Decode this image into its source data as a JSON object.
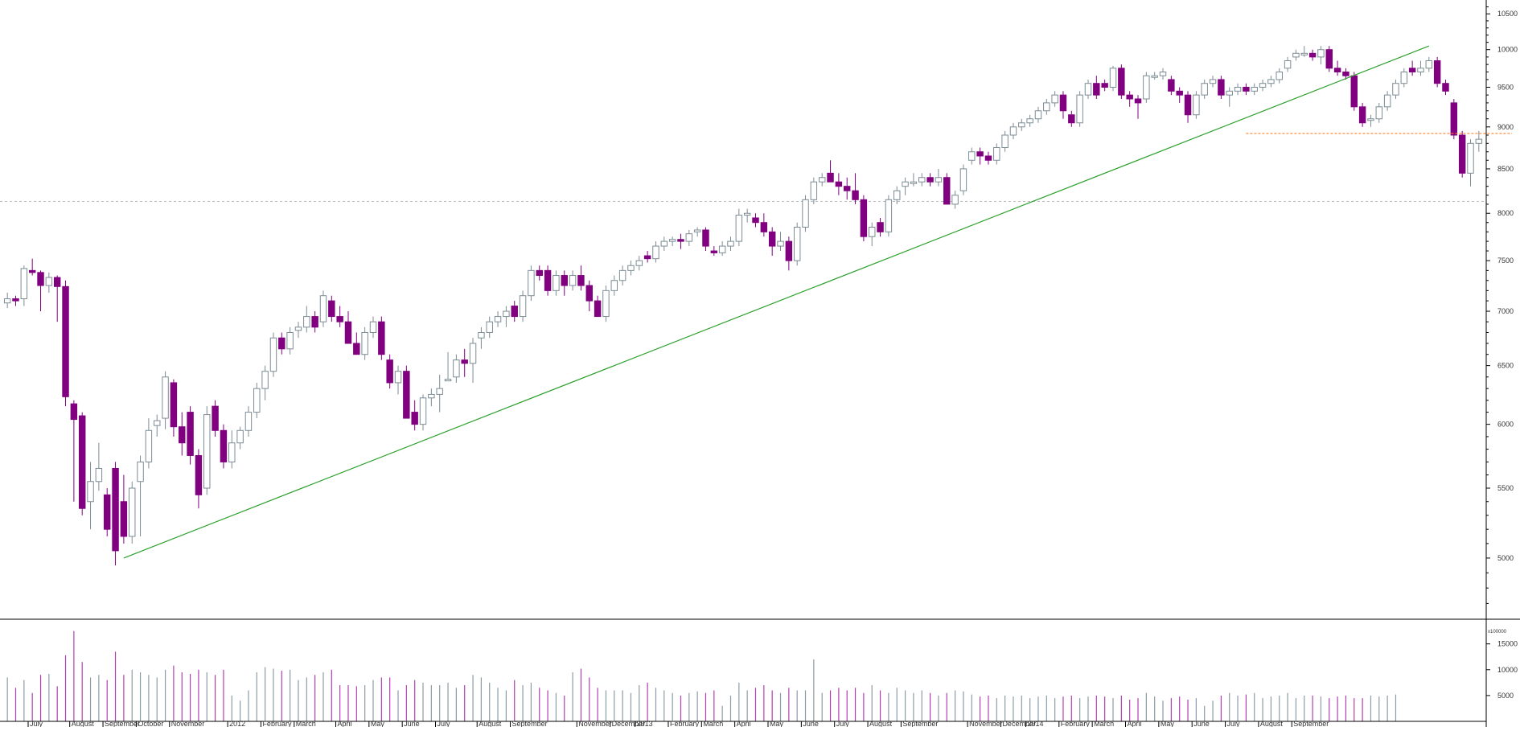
{
  "chart_data": {
    "type": "candlestick",
    "colors": {
      "up": "#ffffff",
      "down": "#800080",
      "up_border": "#7c8c94",
      "trendline": "#2ca02c",
      "support": "#ff7f2a",
      "volume_up": "#8c9ca4",
      "volume_down": "#b040b0",
      "neutral_candle": "#7c8c94"
    },
    "price_axis": {
      "scale": "log",
      "ylim": [
        4600,
        10700
      ],
      "ticks": [
        5000,
        5500,
        6000,
        6500,
        7000,
        7500,
        8000,
        8500,
        9000,
        9500,
        10000,
        10500
      ]
    },
    "volume_axis": {
      "ylim": [
        0,
        19000
      ],
      "ticks": [
        5000,
        10000,
        15000
      ],
      "unit_label": "x100000"
    },
    "x_labels": [
      "July",
      "August",
      "September",
      "October",
      "November",
      "2012",
      "February",
      "March",
      "April",
      "May",
      "June",
      "July",
      "August",
      "September",
      "November",
      "December",
      "2013",
      "February",
      "March",
      "April",
      "May",
      "June",
      "July",
      "August",
      "September",
      "November",
      "December",
      "2014",
      "February",
      "March",
      "April",
      "May",
      "June",
      "July",
      "August",
      "September"
    ],
    "label_weeks": [
      3,
      8,
      12,
      16,
      20,
      27,
      31,
      35,
      40,
      44,
      48,
      52,
      57,
      61,
      69,
      73,
      76,
      80,
      84,
      88,
      92,
      96,
      100,
      104,
      108,
      116,
      120,
      123,
      127,
      131,
      135,
      139,
      143,
      147,
      151,
      155
    ],
    "candles": [
      [
        7080,
        7180,
        7030,
        7120
      ],
      [
        7120,
        7150,
        7050,
        7100
      ],
      [
        7120,
        7450,
        7050,
        7420
      ],
      [
        7400,
        7520,
        7350,
        7380
      ],
      [
        7380,
        7400,
        7000,
        7250
      ],
      [
        7250,
        7380,
        7180,
        7330
      ],
      [
        7330,
        7350,
        6900,
        7240
      ],
      [
        7240,
        7300,
        6150,
        6230
      ],
      [
        6170,
        6200,
        5400,
        6040
      ],
      [
        6070,
        6100,
        5300,
        5350
      ],
      [
        5400,
        5700,
        5200,
        5550
      ],
      [
        5550,
        5850,
        5480,
        5650
      ],
      [
        5450,
        5500,
        5150,
        5200
      ],
      [
        5650,
        5700,
        4950,
        5050
      ],
      [
        5400,
        5600,
        5100,
        5150
      ],
      [
        5150,
        5550,
        5100,
        5500
      ],
      [
        5550,
        5750,
        5150,
        5700
      ],
      [
        5700,
        6050,
        5650,
        5950
      ],
      [
        5990,
        6080,
        5900,
        6030
      ],
      [
        6050,
        6450,
        5960,
        6400
      ],
      [
        6350,
        6380,
        5900,
        5980
      ],
      [
        5980,
        6100,
        5750,
        5850
      ],
      [
        6100,
        6150,
        5680,
        5750
      ],
      [
        5750,
        5800,
        5350,
        5450
      ],
      [
        5500,
        6150,
        5450,
        6080
      ],
      [
        6150,
        6200,
        5900,
        5950
      ],
      [
        5950,
        6000,
        5650,
        5700
      ],
      [
        5700,
        5950,
        5650,
        5850
      ],
      [
        5850,
        5980,
        5800,
        5950
      ],
      [
        5950,
        6150,
        5900,
        6100
      ],
      [
        6100,
        6350,
        6050,
        6300
      ],
      [
        6300,
        6500,
        6200,
        6450
      ],
      [
        6450,
        6800,
        6400,
        6750
      ],
      [
        6750,
        6800,
        6600,
        6650
      ],
      [
        6650,
        6850,
        6600,
        6800
      ],
      [
        6820,
        6900,
        6750,
        6850
      ],
      [
        6850,
        7050,
        6800,
        6950
      ],
      [
        6950,
        7000,
        6800,
        6850
      ],
      [
        6900,
        7200,
        6850,
        7150
      ],
      [
        7100,
        7150,
        6900,
        6950
      ],
      [
        6950,
        7050,
        6850,
        6900
      ],
      [
        6900,
        7000,
        6700,
        6700
      ],
      [
        6700,
        6800,
        6600,
        6600
      ],
      [
        6600,
        6850,
        6550,
        6800
      ],
      [
        6800,
        6950,
        6750,
        6900
      ],
      [
        6900,
        6950,
        6550,
        6600
      ],
      [
        6550,
        6600,
        6300,
        6350
      ],
      [
        6350,
        6500,
        6250,
        6450
      ],
      [
        6450,
        6500,
        6050,
        6050
      ],
      [
        6100,
        6200,
        5950,
        6000
      ],
      [
        6000,
        6250,
        5950,
        6220
      ],
      [
        6220,
        6300,
        6150,
        6250
      ],
      [
        6250,
        6420,
        6100,
        6300
      ],
      [
        6380,
        6620,
        6380,
        6380
      ],
      [
        6400,
        6600,
        6350,
        6550
      ],
      [
        6550,
        6650,
        6400,
        6520
      ],
      [
        6520,
        6750,
        6350,
        6700
      ],
      [
        6750,
        6850,
        6650,
        6800
      ],
      [
        6800,
        6950,
        6750,
        6900
      ],
      [
        6900,
        7000,
        6850,
        6950
      ],
      [
        6950,
        7050,
        6850,
        7000
      ],
      [
        7050,
        7100,
        6900,
        6950
      ],
      [
        6950,
        7200,
        6900,
        7150
      ],
      [
        7150,
        7450,
        7100,
        7400
      ],
      [
        7400,
        7450,
        7300,
        7350
      ],
      [
        7400,
        7450,
        7150,
        7200
      ],
      [
        7200,
        7400,
        7150,
        7350
      ],
      [
        7350,
        7400,
        7150,
        7250
      ],
      [
        7250,
        7400,
        7200,
        7350
      ],
      [
        7350,
        7450,
        7200,
        7250
      ],
      [
        7250,
        7300,
        7000,
        7100
      ],
      [
        7100,
        7150,
        6950,
        6950
      ],
      [
        6950,
        7250,
        6900,
        7200
      ],
      [
        7200,
        7350,
        7150,
        7300
      ],
      [
        7300,
        7450,
        7250,
        7400
      ],
      [
        7400,
        7500,
        7350,
        7450
      ],
      [
        7450,
        7550,
        7400,
        7500
      ],
      [
        7550,
        7600,
        7480,
        7520
      ],
      [
        7520,
        7700,
        7480,
        7650
      ],
      [
        7650,
        7750,
        7600,
        7700
      ],
      [
        7700,
        7750,
        7650,
        7720
      ],
      [
        7720,
        7780,
        7620,
        7700
      ],
      [
        7700,
        7820,
        7650,
        7780
      ],
      [
        7800,
        7850,
        7750,
        7820
      ],
      [
        7820,
        7850,
        7600,
        7650
      ],
      [
        7600,
        7650,
        7550,
        7580
      ],
      [
        7580,
        7700,
        7550,
        7650
      ],
      [
        7650,
        7750,
        7600,
        7700
      ],
      [
        7700,
        8050,
        7650,
        7980
      ],
      [
        7980,
        8050,
        7900,
        8000
      ],
      [
        7950,
        8000,
        7850,
        7900
      ],
      [
        7900,
        8000,
        7750,
        7800
      ],
      [
        7800,
        7850,
        7550,
        7650
      ],
      [
        7650,
        7800,
        7600,
        7700
      ],
      [
        7700,
        7750,
        7400,
        7500
      ],
      [
        7500,
        7900,
        7450,
        7850
      ],
      [
        7850,
        8200,
        7800,
        8150
      ],
      [
        8150,
        8400,
        8100,
        8350
      ],
      [
        8350,
        8450,
        8300,
        8400
      ],
      [
        8450,
        8600,
        8350,
        8350
      ],
      [
        8350,
        8450,
        8200,
        8300
      ],
      [
        8300,
        8400,
        8150,
        8250
      ],
      [
        8250,
        8450,
        8100,
        8150
      ],
      [
        8150,
        8200,
        7700,
        7750
      ],
      [
        7750,
        7900,
        7650,
        7850
      ],
      [
        7900,
        7950,
        7750,
        7800
      ],
      [
        7800,
        8200,
        7750,
        8150
      ],
      [
        8150,
        8300,
        8100,
        8250
      ],
      [
        8300,
        8400,
        8200,
        8350
      ],
      [
        8350,
        8450,
        8300,
        8350
      ],
      [
        8350,
        8450,
        8300,
        8400
      ],
      [
        8400,
        8450,
        8300,
        8350
      ],
      [
        8350,
        8500,
        8300,
        8400
      ],
      [
        8400,
        8450,
        8100,
        8100
      ],
      [
        8100,
        8250,
        8050,
        8200
      ],
      [
        8250,
        8550,
        8200,
        8500
      ],
      [
        8600,
        8750,
        8550,
        8700
      ],
      [
        8700,
        8750,
        8550,
        8650
      ],
      [
        8650,
        8700,
        8550,
        8600
      ],
      [
        8600,
        8800,
        8550,
        8750
      ],
      [
        8750,
        8950,
        8700,
        8900
      ],
      [
        8900,
        9050,
        8850,
        9000
      ],
      [
        9000,
        9100,
        8950,
        9050
      ],
      [
        9050,
        9150,
        9000,
        9100
      ],
      [
        9100,
        9250,
        9050,
        9200
      ],
      [
        9200,
        9350,
        9150,
        9300
      ],
      [
        9300,
        9450,
        9250,
        9400
      ],
      [
        9400,
        9450,
        9100,
        9200
      ],
      [
        9150,
        9200,
        9000,
        9050
      ],
      [
        9050,
        9450,
        9000,
        9400
      ],
      [
        9400,
        9600,
        9350,
        9550
      ],
      [
        9550,
        9650,
        9350,
        9400
      ],
      [
        9550,
        9600,
        9450,
        9500
      ],
      [
        9500,
        9780,
        9450,
        9750
      ],
      [
        9750,
        9800,
        9350,
        9400
      ],
      [
        9400,
        9450,
        9250,
        9350
      ],
      [
        9350,
        9400,
        9100,
        9300
      ],
      [
        9350,
        9700,
        9300,
        9650
      ],
      [
        9650,
        9700,
        9600,
        9650
      ],
      [
        9650,
        9750,
        9600,
        9700
      ],
      [
        9600,
        9650,
        9400,
        9450
      ],
      [
        9450,
        9500,
        9300,
        9400
      ],
      [
        9400,
        9450,
        9050,
        9150
      ],
      [
        9150,
        9450,
        9100,
        9400
      ],
      [
        9400,
        9600,
        9350,
        9550
      ],
      [
        9550,
        9650,
        9500,
        9600
      ],
      [
        9600,
        9650,
        9350,
        9400
      ],
      [
        9400,
        9500,
        9250,
        9450
      ],
      [
        9450,
        9550,
        9400,
        9500
      ],
      [
        9500,
        9550,
        9400,
        9450
      ],
      [
        9450,
        9550,
        9400,
        9500
      ],
      [
        9500,
        9600,
        9450,
        9550
      ],
      [
        9550,
        9650,
        9500,
        9600
      ],
      [
        9600,
        9750,
        9550,
        9700
      ],
      [
        9750,
        9900,
        9700,
        9850
      ],
      [
        9900,
        10000,
        9850,
        9950
      ],
      [
        9950,
        10050,
        9900,
        9950
      ],
      [
        9950,
        10000,
        9850,
        9900
      ],
      [
        9900,
        10050,
        9800,
        10000
      ],
      [
        10000,
        10050,
        9700,
        9750
      ],
      [
        9750,
        9850,
        9650,
        9700
      ],
      [
        9700,
        9750,
        9600,
        9650
      ],
      [
        9650,
        9700,
        9200,
        9250
      ],
      [
        9250,
        9300,
        9000,
        9050
      ],
      [
        9100,
        9150,
        9000,
        9100
      ],
      [
        9100,
        9300,
        9050,
        9250
      ],
      [
        9250,
        9450,
        9200,
        9400
      ],
      [
        9400,
        9600,
        9350,
        9550
      ],
      [
        9550,
        9750,
        9500,
        9700
      ],
      [
        9750,
        9850,
        9650,
        9700
      ],
      [
        9700,
        9850,
        9650,
        9750
      ],
      [
        9750,
        9900,
        9700,
        9850
      ],
      [
        9850,
        9900,
        9500,
        9550
      ],
      [
        9550,
        9600,
        9400,
        9450
      ],
      [
        9300,
        9350,
        8850,
        8900
      ],
      [
        8900,
        8950,
        8400,
        8450
      ],
      [
        8450,
        8850,
        8300,
        8800
      ],
      [
        8800,
        8950,
        8700,
        8850
      ]
    ],
    "volumes": [
      8500,
      6500,
      8000,
      5500,
      9000,
      9200,
      6800,
      12800,
      17500,
      11500,
      8500,
      9000,
      8000,
      13500,
      9000,
      10000,
      9500,
      9000,
      8500,
      10000,
      10800,
      9500,
      9200,
      10000,
      9500,
      9000,
      10000,
      5000,
      4000,
      6000,
      9500,
      10500,
      10200,
      9800,
      10000,
      8000,
      8500,
      9000,
      9500,
      10000,
      7000,
      7000,
      6800,
      7000,
      8000,
      8500,
      8500,
      6000,
      7000,
      8000,
      7500,
      7000,
      7000,
      7500,
      6500,
      7000,
      9000,
      8500,
      7500,
      6500,
      6000,
      8000,
      7000,
      7500,
      6500,
      6000,
      5500,
      5000,
      9500,
      10200,
      8500,
      6500,
      6000,
      6000,
      6000,
      5500,
      7000,
      7500,
      6500,
      6000,
      5500,
      5000,
      5500,
      5800,
      5500,
      6000,
      3000,
      5000,
      7500,
      6000,
      6500,
      7000,
      6000,
      5500,
      6500,
      6000,
      6000,
      12000,
      5500,
      6000,
      6500,
      6000,
      6500,
      5500,
      7000,
      6000,
      5500,
      6500,
      6000,
      5500,
      6000,
      5500,
      5000,
      5500,
      6000,
      5800,
      5200,
      4800,
      5000,
      4500,
      5000,
      4800,
      5000,
      4500,
      4800,
      5000,
      4500,
      4800,
      5000,
      4500,
      4800,
      5000,
      4800,
      4500,
      5000,
      4200,
      4500,
      5500,
      4800,
      4000,
      4500,
      4800,
      4200,
      4500,
      3000,
      4000,
      5000,
      5500,
      5000,
      5200,
      5500,
      4500,
      4800,
      5000,
      5500,
      4500,
      5000,
      5000,
      4800,
      4500,
      4800,
      5000,
      4500,
      4500,
      5000,
      4800,
      5000,
      5200
    ],
    "trendline": {
      "from": [
        14,
        5000
      ],
      "to": [
        171,
        10050
      ]
    },
    "support_line": {
      "from": [
        149,
        8920
      ],
      "to": [
        181,
        8920
      ]
    },
    "reference_level": 8130
  }
}
